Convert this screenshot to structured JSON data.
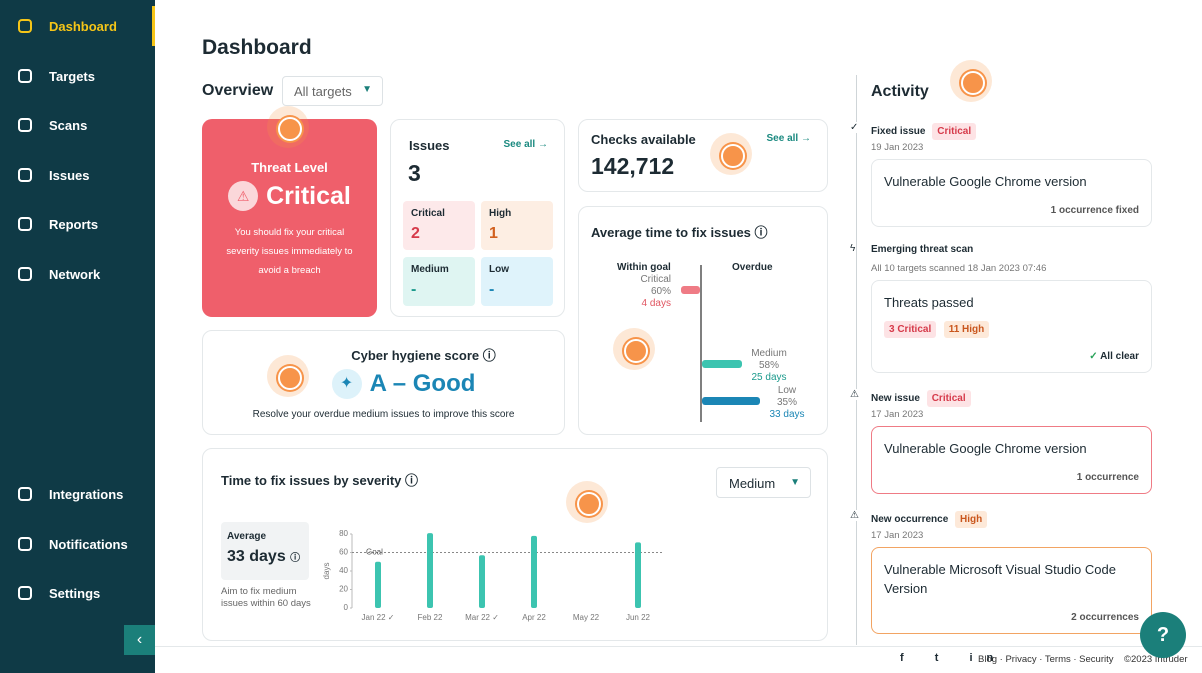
{
  "sidebar": {
    "nav": [
      "Dashboard",
      "Targets",
      "Scans",
      "Issues",
      "Reports",
      "Network"
    ],
    "bottom": [
      "Integrations",
      "Notifications",
      "Settings"
    ]
  },
  "header": {
    "title": "Dashboard"
  },
  "overview": {
    "title": "Overview",
    "filter": "All targets"
  },
  "threat": {
    "label": "Threat Level",
    "level": "Critical",
    "text": "You should fix your critical severity issues immediately to avoid a breach"
  },
  "issues": {
    "title": "Issues",
    "link": "See all",
    "count": "3",
    "breakdown": [
      {
        "label": "Critical",
        "value": "2"
      },
      {
        "label": "High",
        "value": "1"
      },
      {
        "label": "Medium",
        "value": "-"
      },
      {
        "label": "Low",
        "value": "-"
      }
    ]
  },
  "checks": {
    "title": "Checks available",
    "link": "See all",
    "count": "142,712"
  },
  "avg_fix": {
    "title": "Average time to fix issues",
    "within": "Within goal",
    "overdue": "Overdue",
    "rows": [
      {
        "label": "Critical",
        "percent": "60%",
        "days": "4 days"
      },
      {
        "label": "Medium",
        "percent": "58%",
        "days": "25 days"
      },
      {
        "label": "Low",
        "percent": "35%",
        "days": "33 days"
      }
    ]
  },
  "hygiene": {
    "title": "Cyber hygiene score",
    "grade": "A – Good",
    "text": "Resolve your overdue medium issues to improve this score"
  },
  "chart_data": {
    "type": "bar",
    "title": "Time to fix issues by severity",
    "filter": "Medium",
    "summary": {
      "label": "Average",
      "value": "33 days",
      "note": "Aim to fix medium issues within 60 days"
    },
    "categories": [
      "Jan 22 ✓",
      "Feb 22",
      "Mar 22 ✓",
      "Apr 22",
      "May 22",
      "Jun 22"
    ],
    "values": [
      50,
      81,
      57,
      78,
      null,
      71
    ],
    "color": "#3cc4b0",
    "ylabel": "days",
    "ylim": [
      0,
      80
    ],
    "yticks": [
      0,
      20,
      40,
      60,
      80
    ],
    "goal": 60,
    "goal_label": "Goal"
  },
  "activity": {
    "title": "Activity",
    "items": [
      {
        "event": "Fixed issue",
        "tag": "Critical",
        "date": "19 Jan 2023",
        "card_title": "Vulnerable Google Chrome version",
        "card_note": "1 occurrence fixed"
      },
      {
        "event": "Emerging threat scan",
        "date": "All 10 targets scanned 18 Jan 2023 07:46",
        "card_title": "Threats passed",
        "chips": [
          "3 Critical",
          "11 High"
        ],
        "card_note": "All clear"
      },
      {
        "event": "New issue",
        "tag": "Critical",
        "date": "17 Jan 2023",
        "card_title": "Vulnerable Google Chrome version",
        "card_note": "1 occurrence"
      },
      {
        "event": "New occurrence",
        "tag": "High",
        "date": "17 Jan 2023",
        "card_title": "Vulnerable Microsoft Visual Studio Code Version",
        "card_note": "2 occurrences"
      }
    ]
  },
  "footer": {
    "links": "Blog · Privacy · Terms · Security",
    "copyright": "©2023 Intruder"
  }
}
